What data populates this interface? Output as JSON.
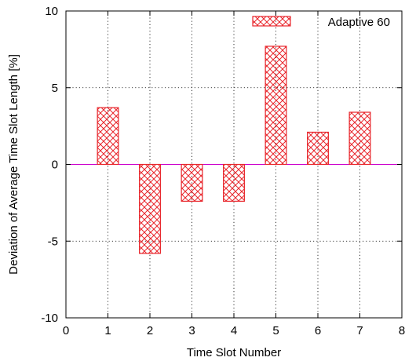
{
  "chart_data": {
    "type": "bar",
    "title": "",
    "xlabel": "Time Slot Number",
    "ylabel": "Deviation of Average Time Slot Length [%]",
    "xlim": [
      0,
      8
    ],
    "ylim": [
      -10,
      10
    ],
    "xticks": [
      0,
      1,
      2,
      3,
      4,
      5,
      6,
      7,
      8
    ],
    "yticks": [
      -10,
      -5,
      0,
      5,
      10
    ],
    "xtick_labels": [
      "0",
      "1",
      "2",
      "3",
      "4",
      "5",
      "6",
      "7",
      "8"
    ],
    "ytick_labels": [
      "-10",
      "-5",
      "0",
      "5",
      "10"
    ],
    "grid": true,
    "legend_position": "top-right",
    "zero_line_color": "#cc00cc",
    "series": [
      {
        "name": "Adaptive 60",
        "color": "#e8262c",
        "fill": "crosshatch",
        "x": [
          1,
          2,
          3,
          4,
          5,
          6,
          7
        ],
        "values": [
          3.7,
          -5.8,
          -2.4,
          -2.4,
          7.7,
          2.1,
          3.4
        ]
      }
    ]
  }
}
